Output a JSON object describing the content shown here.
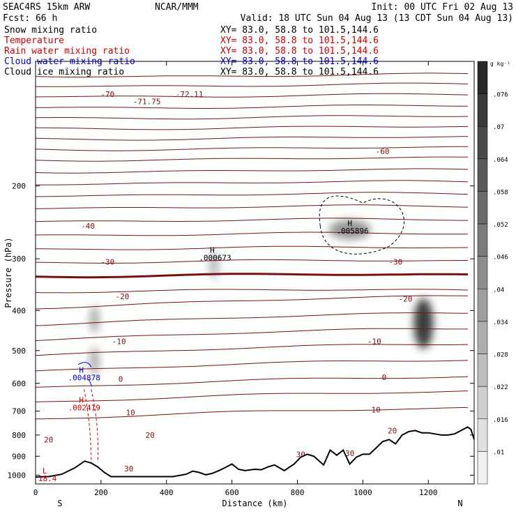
{
  "header": {
    "model": "SEAC4RS 15km ARW",
    "center": "NCAR/MMM",
    "init": "Init: 00 UTC Fri 02 Aug 13",
    "fcst": "Fcst:   66 h",
    "valid": "Valid: 18 UTC Sun 04 Aug 13 (13 CDT Sun 04 Aug 13)"
  },
  "fields": [
    {
      "name": "Snow mixing ratio",
      "xy": "XY=  83.0, 58.8 to 101.5,144.6",
      "color": "#000000"
    },
    {
      "name": "Temperature",
      "xy": "XY=  83.0, 58.8 to 101.5,144.6",
      "color": "#cc0000"
    },
    {
      "name": "Rain water mixing ratio",
      "xy": "XY=  83.0, 58.8 to 101.5,144.6",
      "color": "#cc0000"
    },
    {
      "name": "Cloud water mixing ratio",
      "xy": "XY=  83.0, 58.8 to 101.5,144.6",
      "color": "#0000cc"
    },
    {
      "name": "Cloud ice mixing ratio",
      "xy": "XY=  83.0, 58.8 to 101.5,144.6",
      "color": "#000000"
    }
  ],
  "colors": {
    "isotherm": "#7a1010",
    "rain": "#cc0000",
    "cloud_water": "#0000cc",
    "terrain": "#000000"
  },
  "chart_data": {
    "type": "cross-section",
    "xlabel": "Distance (km)",
    "ylabel": "Pressure (hPa)",
    "xlim": [
      0,
      1340
    ],
    "ylim": [
      1050,
      100
    ],
    "y_scale": "log",
    "x_ticks": [
      0,
      200,
      400,
      600,
      800,
      1000,
      1200
    ],
    "y_ticks": [
      200,
      300,
      400,
      500,
      600,
      700,
      800,
      900,
      1000
    ],
    "endpoint_labels": {
      "left": "S",
      "right": "N"
    },
    "colorbar": {
      "unit": "g kg⁻¹",
      "levels": [
        ".01",
        ".016",
        ".022",
        ".028",
        ".034",
        ".04",
        ".046",
        ".052",
        ".058",
        ".064",
        ".07",
        ".076"
      ]
    },
    "temperature_contours": [
      {
        "label": "-72.11",
        "x": 470,
        "p": 120
      },
      {
        "label": "-71.75",
        "x": 340,
        "p": 125
      },
      {
        "label": "-70",
        "x": 220,
        "p": 120
      },
      {
        "label": "-60",
        "x": 1060,
        "p": 165
      },
      {
        "label": "-40",
        "x": 160,
        "p": 250
      },
      {
        "label": "-30",
        "x": 220,
        "p": 305
      },
      {
        "label": "-30",
        "x": 1100,
        "p": 305
      },
      {
        "label": "-20",
        "x": 265,
        "p": 370
      },
      {
        "label": "-20",
        "x": 1130,
        "p": 375
      },
      {
        "label": "-10",
        "x": 255,
        "p": 475
      },
      {
        "label": "-10",
        "x": 1035,
        "p": 475
      },
      {
        "label": "0",
        "x": 260,
        "p": 585
      },
      {
        "label": "0",
        "x": 1065,
        "p": 580
      },
      {
        "label": "10",
        "x": 290,
        "p": 705
      },
      {
        "label": "10",
        "x": 1040,
        "p": 695
      },
      {
        "label": "20",
        "x": 350,
        "p": 800
      },
      {
        "label": "20",
        "x": 1090,
        "p": 780
      },
      {
        "label": "20",
        "x": 40,
        "p": 820
      },
      {
        "label": "30",
        "x": 810,
        "p": 890
      },
      {
        "label": "30",
        "x": 960,
        "p": 885
      },
      {
        "label": "30",
        "x": 285,
        "p": 965
      }
    ],
    "extrema": [
      {
        "type": "H",
        "value": ".000673",
        "x": 540,
        "p": 290,
        "field": "snow"
      },
      {
        "type": "H",
        "value": ".005896",
        "x": 960,
        "p": 250,
        "field": "cloud ice"
      },
      {
        "type": "H",
        "value": ".004878",
        "x": 140,
        "p": 565,
        "field": "cloud water"
      },
      {
        "type": "H",
        "value": ".002419",
        "x": 140,
        "p": 668,
        "field": "rain"
      },
      {
        "type": "L",
        "value": "18.4",
        "x": 28,
        "p": 990,
        "field": "temperature"
      }
    ],
    "snow_maxima": [
      {
        "x": 960,
        "p": 255,
        "value": 0.03
      },
      {
        "x": 1185,
        "p": 430,
        "value": 0.07
      },
      {
        "x": 545,
        "p": 310,
        "value": 0.015
      },
      {
        "x": 180,
        "p": 420,
        "value": 0.02
      },
      {
        "x": 180,
        "p": 530,
        "value": 0.02
      }
    ],
    "terrain": {
      "x": [
        0,
        40,
        80,
        120,
        150,
        170,
        190,
        210,
        230,
        250,
        280,
        320,
        380,
        420,
        460,
        480,
        500,
        520,
        540,
        560,
        580,
        600,
        620,
        640,
        670,
        690,
        710,
        730,
        760,
        790,
        810,
        830,
        850,
        880,
        900,
        920,
        940,
        960,
        980,
        1000,
        1020,
        1040,
        1060,
        1080,
        1100,
        1120,
        1140,
        1160,
        1180,
        1200,
        1220,
        1240,
        1260,
        1280,
        1300,
        1320,
        1330,
        1340
      ],
      "p": [
        1010,
        1008,
        995,
        960,
        925,
        935,
        955,
        985,
        1008,
        1008,
        1008,
        1008,
        1008,
        1008,
        995,
        978,
        985,
        998,
        990,
        975,
        958,
        940,
        968,
        975,
        968,
        970,
        955,
        945,
        975,
        940,
        905,
        890,
        900,
        945,
        870,
        895,
        870,
        940,
        905,
        890,
        890,
        860,
        830,
        820,
        840,
        800,
        785,
        780,
        790,
        790,
        795,
        800,
        800,
        795,
        780,
        765,
        775,
        820
      ]
    }
  }
}
